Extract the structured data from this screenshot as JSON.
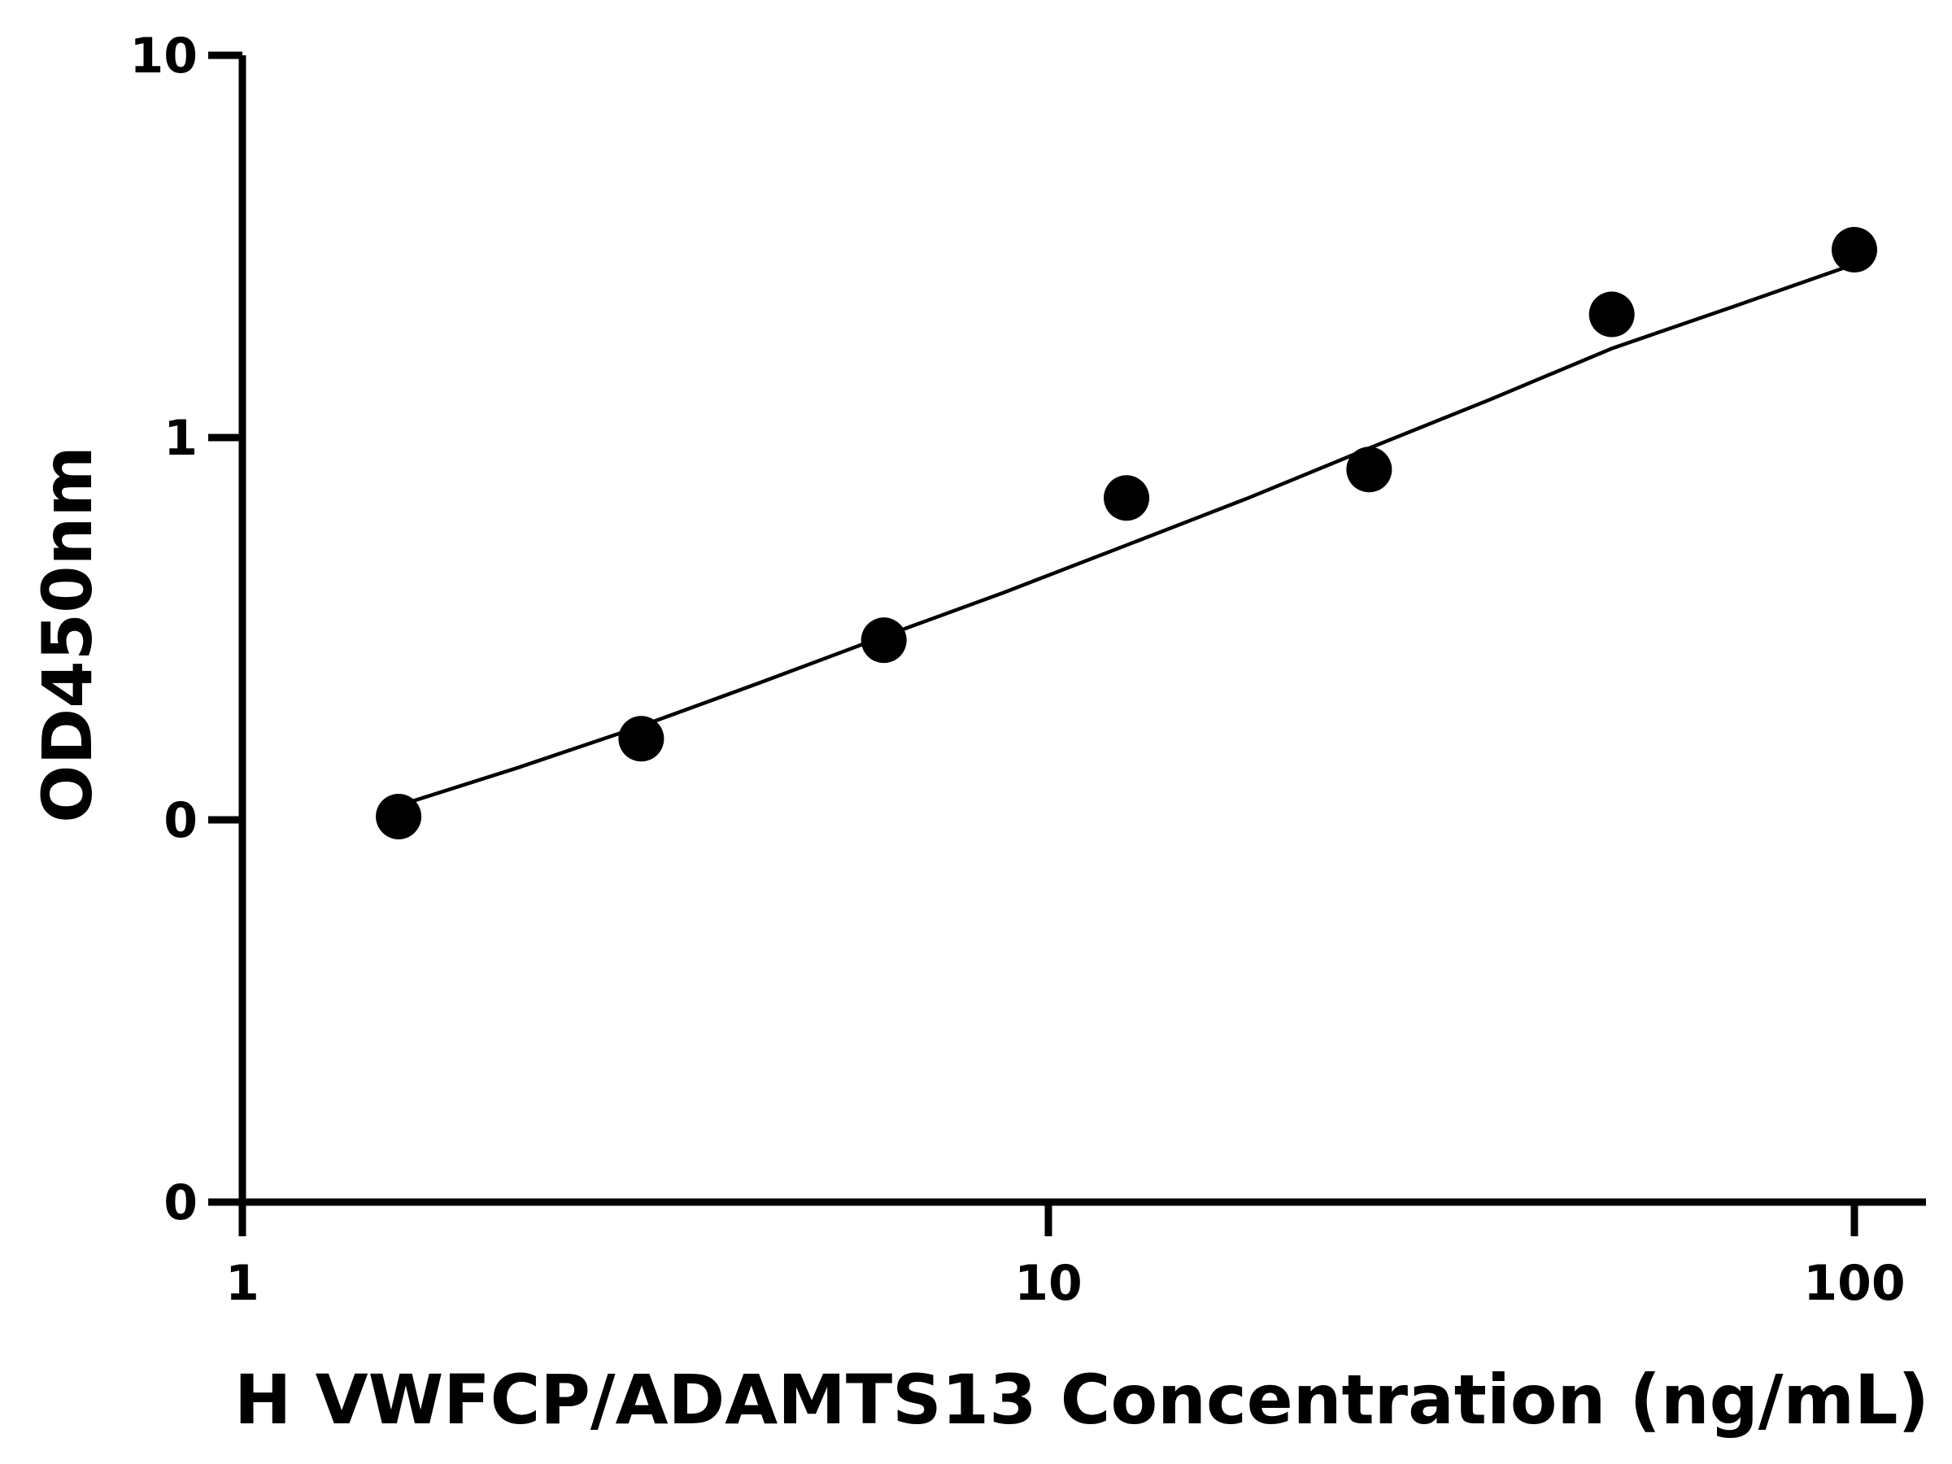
{
  "chart_data": {
    "type": "scatter",
    "title": "",
    "xlabel": "H VWFCP/ADAMTS13 Concentration (ng/mL)",
    "ylabel": "OD450nm",
    "x_scale": "log",
    "y_scale": "log",
    "xlim": [
      1,
      120
    ],
    "ylim": [
      0.01,
      10
    ],
    "x_ticks": [
      {
        "value": 1,
        "label": "1"
      },
      {
        "value": 10,
        "label": "10"
      },
      {
        "value": 100,
        "label": "100"
      }
    ],
    "y_ticks": [
      {
        "value": 0.01,
        "label": "0"
      },
      {
        "value": 0.1,
        "label": "0"
      },
      {
        "value": 1,
        "label": "1"
      },
      {
        "value": 10,
        "label": "10"
      }
    ],
    "grid": false,
    "legend": "none",
    "series": [
      {
        "marker": "circle",
        "color": "#000000",
        "x": [
          1.5625,
          3.125,
          6.25,
          12.5,
          25,
          50,
          100
        ],
        "y": [
          0.102,
          0.163,
          0.295,
          0.695,
          0.825,
          2.1,
          3.1
        ]
      }
    ],
    "fit_curve": {
      "color": "#000000",
      "x": [
        1.5625,
        2.2,
        3.125,
        4.4,
        6.25,
        8.8,
        12.5,
        17.7,
        25,
        35.4,
        50,
        70.7,
        100
      ],
      "y": [
        0.109,
        0.137,
        0.176,
        0.229,
        0.302,
        0.393,
        0.523,
        0.695,
        0.938,
        1.26,
        1.71,
        2.2,
        2.84
      ]
    }
  }
}
